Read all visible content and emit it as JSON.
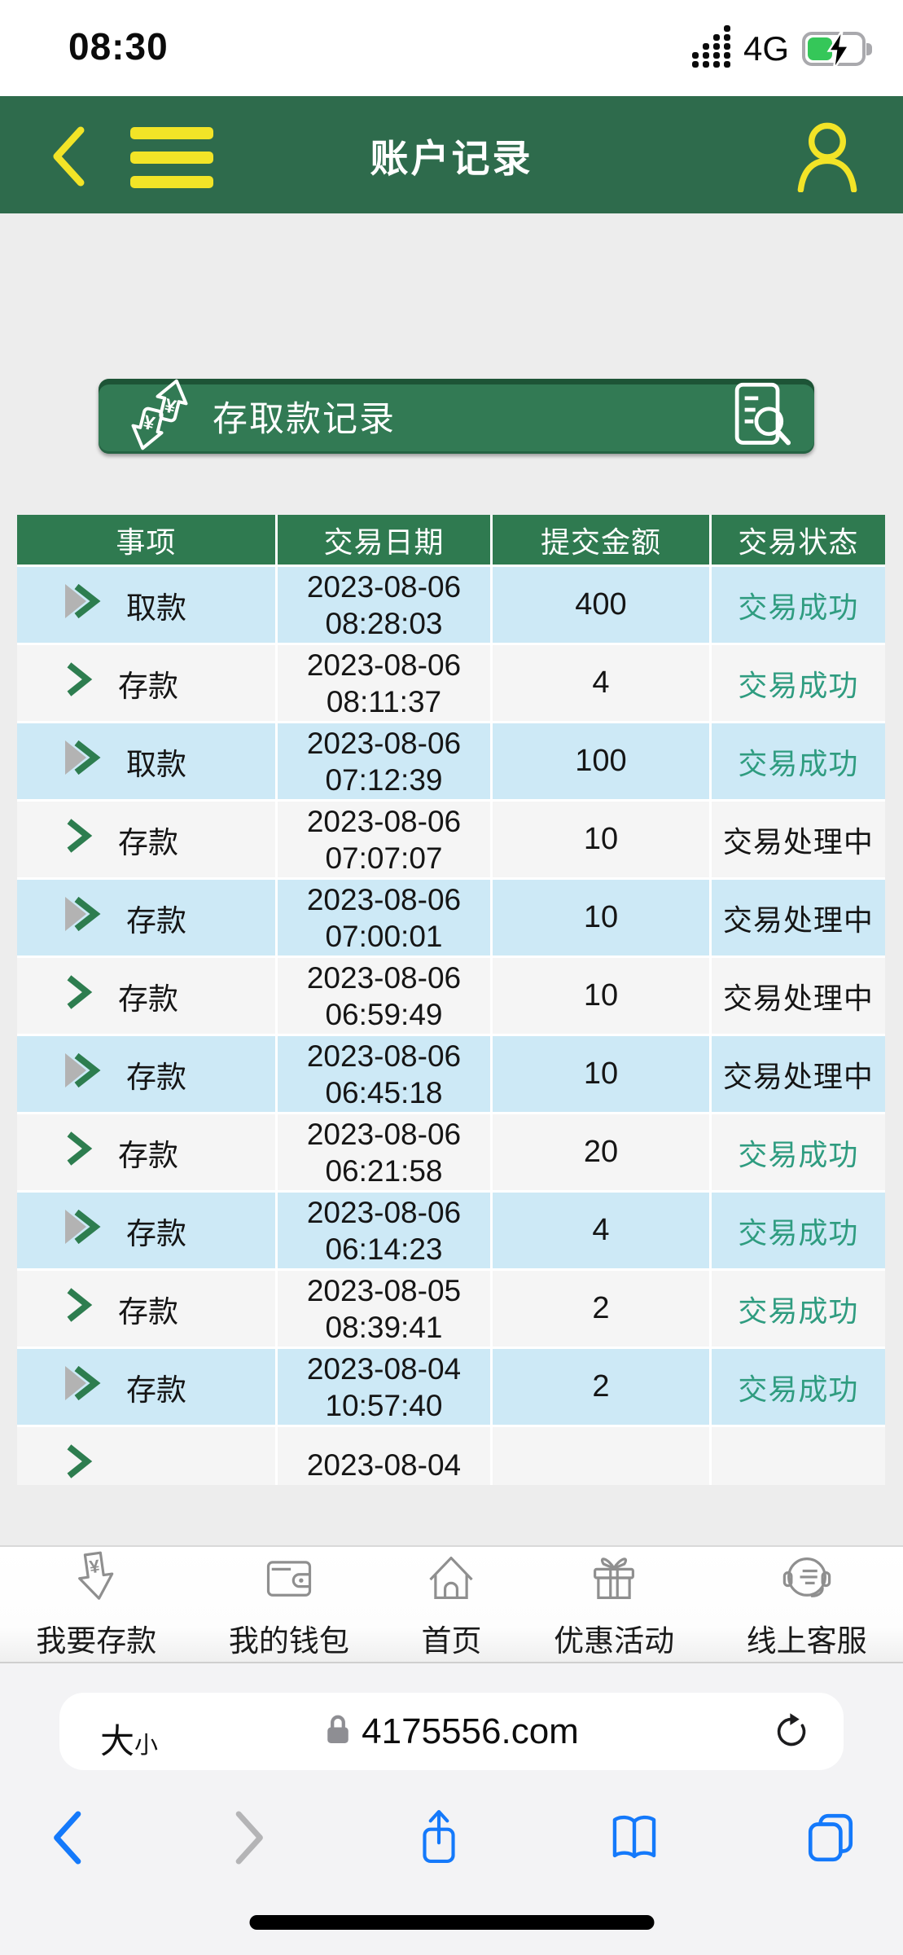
{
  "status_bar": {
    "time": "08:30",
    "network_label": "4G"
  },
  "app_header": {
    "title": "账户记录"
  },
  "record_card": {
    "title": "存取款记录"
  },
  "table": {
    "columns": [
      "事项",
      "交易日期",
      "提交金额",
      "交易状态"
    ],
    "rows": [
      {
        "item": "取款",
        "date": "2023-08-06",
        "time": "08:28:03",
        "amount": "400",
        "status": "交易成功",
        "status_type": "success",
        "icon": "double-arrow"
      },
      {
        "item": "存款",
        "date": "2023-08-06",
        "time": "08:11:37",
        "amount": "4",
        "status": "交易成功",
        "status_type": "success",
        "icon": "chevron"
      },
      {
        "item": "取款",
        "date": "2023-08-06",
        "time": "07:12:39",
        "amount": "100",
        "status": "交易成功",
        "status_type": "success",
        "icon": "double-arrow"
      },
      {
        "item": "存款",
        "date": "2023-08-06",
        "time": "07:07:07",
        "amount": "10",
        "status": "交易处理中",
        "status_type": "processing",
        "icon": "chevron"
      },
      {
        "item": "存款",
        "date": "2023-08-06",
        "time": "07:00:01",
        "amount": "10",
        "status": "交易处理中",
        "status_type": "processing",
        "icon": "double-arrow"
      },
      {
        "item": "存款",
        "date": "2023-08-06",
        "time": "06:59:49",
        "amount": "10",
        "status": "交易处理中",
        "status_type": "processing",
        "icon": "chevron"
      },
      {
        "item": "存款",
        "date": "2023-08-06",
        "time": "06:45:18",
        "amount": "10",
        "status": "交易处理中",
        "status_type": "processing",
        "icon": "double-arrow"
      },
      {
        "item": "存款",
        "date": "2023-08-06",
        "time": "06:21:58",
        "amount": "20",
        "status": "交易成功",
        "status_type": "success",
        "icon": "chevron"
      },
      {
        "item": "存款",
        "date": "2023-08-06",
        "time": "06:14:23",
        "amount": "4",
        "status": "交易成功",
        "status_type": "success",
        "icon": "double-arrow"
      },
      {
        "item": "存款",
        "date": "2023-08-05",
        "time": "08:39:41",
        "amount": "2",
        "status": "交易成功",
        "status_type": "success",
        "icon": "chevron"
      },
      {
        "item": "存款",
        "date": "2023-08-04",
        "time": "10:57:40",
        "amount": "2",
        "status": "交易成功",
        "status_type": "success",
        "icon": "double-arrow"
      },
      {
        "item": "",
        "date": "2023-08-04",
        "time": "",
        "amount": "",
        "status": "",
        "status_type": "",
        "icon": "chevron",
        "partial": true
      }
    ]
  },
  "bottom_nav": {
    "items": [
      {
        "label": "我要存款",
        "icon": "deposit-arrow-icon"
      },
      {
        "label": "我的钱包",
        "icon": "wallet-icon"
      },
      {
        "label": "首页",
        "icon": "home-icon"
      },
      {
        "label": "优惠活动",
        "icon": "gift-icon"
      },
      {
        "label": "线上客服",
        "icon": "customer-service-icon"
      }
    ]
  },
  "browser": {
    "text_size_big": "大",
    "text_size_small": "小",
    "url": "4175556.com"
  },
  "colors": {
    "header_green": "#2e6b4c",
    "card_green": "#327a54",
    "table_header_green": "#2f7a50",
    "row_blue": "#cde9f6",
    "row_light": "#f5f5f5",
    "page_gray": "#ededed",
    "accent_yellow": "#f2e427",
    "success_green": "#2f9c80",
    "processing_black": "#151515",
    "safari_blue": "#1479fb",
    "battery_green": "#35c759"
  }
}
